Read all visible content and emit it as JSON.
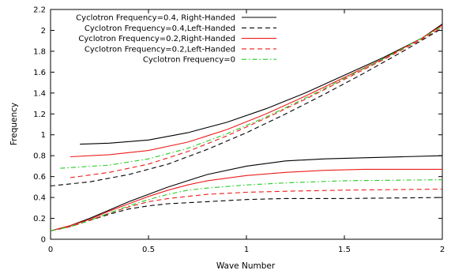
{
  "chart_data": {
    "type": "line",
    "xlabel": "Wave Number",
    "ylabel": "Frequency",
    "xlim": [
      0,
      2
    ],
    "ylim": [
      0,
      2.2
    ],
    "xticks": [
      "0",
      "0.5",
      "1",
      "1.5",
      "2"
    ],
    "yticks": [
      "0",
      "0.2",
      "0.4",
      "0.6",
      "0.8",
      "1",
      "1.2",
      "1.4",
      "1.6",
      "1.8",
      "2",
      "2.2"
    ],
    "grid": false,
    "legend_position": "top-right",
    "series": [
      {
        "name": "Cyclotron Frequency=0.4, Right-Handed",
        "color": "#000000",
        "dash": "solid",
        "branches": [
          {
            "x": [
              0.15,
              0.3,
              0.5,
              0.7,
              0.9,
              1.1,
              1.3,
              1.5,
              1.7,
              1.9,
              2.0
            ],
            "y": [
              0.91,
              0.92,
              0.95,
              1.02,
              1.12,
              1.25,
              1.4,
              1.57,
              1.74,
              1.93,
              2.06
            ]
          },
          {
            "x": [
              0.0,
              0.1,
              0.2,
              0.3,
              0.4,
              0.5,
              0.6,
              0.7,
              0.8,
              1.0,
              1.2,
              1.4,
              1.6,
              1.8,
              2.0
            ],
            "y": [
              0.08,
              0.13,
              0.2,
              0.28,
              0.36,
              0.43,
              0.5,
              0.56,
              0.62,
              0.7,
              0.75,
              0.77,
              0.78,
              0.79,
              0.8
            ]
          }
        ]
      },
      {
        "name": "Cyclotron Frequency=0.4,Left-Handed",
        "color": "#000000",
        "dash": "dashed",
        "branches": [
          {
            "x": [
              0.0,
              0.2,
              0.4,
              0.6,
              0.8,
              1.0,
              1.2,
              1.4,
              1.6,
              1.8,
              2.0
            ],
            "y": [
              0.51,
              0.55,
              0.62,
              0.72,
              0.86,
              1.02,
              1.2,
              1.39,
              1.59,
              1.8,
              2.02
            ]
          },
          {
            "x": [
              0.0,
              0.1,
              0.2,
              0.3,
              0.4,
              0.5,
              0.6,
              0.8,
              1.0,
              1.2,
              1.5,
              2.0
            ],
            "y": [
              0.08,
              0.12,
              0.18,
              0.24,
              0.29,
              0.32,
              0.34,
              0.36,
              0.38,
              0.39,
              0.39,
              0.4
            ]
          }
        ]
      },
      {
        "name": "Cyclotron Frequency=0.2,Right-Handed",
        "color": "#ee1c1c",
        "dash": "solid",
        "branches": [
          {
            "x": [
              0.1,
              0.3,
              0.5,
              0.7,
              0.9,
              1.1,
              1.3,
              1.5,
              1.7,
              1.9,
              2.0
            ],
            "y": [
              0.79,
              0.81,
              0.85,
              0.93,
              1.05,
              1.2,
              1.37,
              1.55,
              1.73,
              1.93,
              2.05
            ]
          },
          {
            "x": [
              0.0,
              0.1,
              0.2,
              0.3,
              0.4,
              0.5,
              0.6,
              0.7,
              0.8,
              1.0,
              1.2,
              1.4,
              1.6,
              1.8,
              2.0
            ],
            "y": [
              0.08,
              0.13,
              0.19,
              0.27,
              0.34,
              0.41,
              0.47,
              0.52,
              0.56,
              0.61,
              0.64,
              0.66,
              0.67,
              0.67,
              0.67
            ]
          }
        ]
      },
      {
        "name": "Cyclotron Frequency=0.2,Left-Handed",
        "color": "#ee1c1c",
        "dash": "dashed",
        "branches": [
          {
            "x": [
              0.1,
              0.3,
              0.5,
              0.7,
              0.9,
              1.1,
              1.3,
              1.5,
              1.7,
              1.9,
              2.0
            ],
            "y": [
              0.59,
              0.64,
              0.72,
              0.84,
              0.99,
              1.16,
              1.34,
              1.53,
              1.72,
              1.92,
              2.03
            ]
          },
          {
            "x": [
              0.0,
              0.1,
              0.2,
              0.3,
              0.4,
              0.5,
              0.6,
              0.8,
              1.0,
              1.2,
              1.5,
              2.0
            ],
            "y": [
              0.08,
              0.12,
              0.18,
              0.25,
              0.31,
              0.36,
              0.39,
              0.43,
              0.45,
              0.46,
              0.47,
              0.48
            ]
          }
        ]
      },
      {
        "name": "Cyclotron Frequency=0",
        "color": "#22cc22",
        "dash": "dashdot",
        "branches": [
          {
            "x": [
              0.05,
              0.3,
              0.5,
              0.7,
              0.9,
              1.1,
              1.3,
              1.5,
              1.7,
              1.9,
              2.0
            ],
            "y": [
              0.68,
              0.71,
              0.77,
              0.87,
              1.01,
              1.17,
              1.35,
              1.54,
              1.73,
              1.93,
              2.04
            ]
          },
          {
            "x": [
              0.0,
              0.1,
              0.2,
              0.3,
              0.4,
              0.5,
              0.6,
              0.7,
              0.8,
              1.0,
              1.2,
              1.5,
              2.0
            ],
            "y": [
              0.08,
              0.12,
              0.18,
              0.25,
              0.32,
              0.38,
              0.43,
              0.47,
              0.49,
              0.52,
              0.54,
              0.56,
              0.57
            ]
          }
        ]
      }
    ]
  }
}
